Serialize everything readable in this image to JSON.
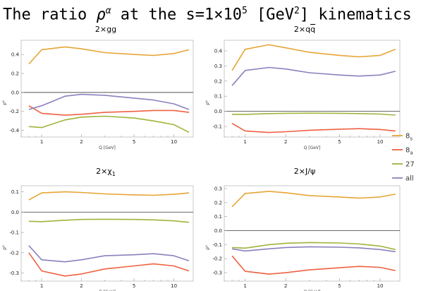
{
  "header": {
    "prefix": "The ratio ",
    "rho": "ρ",
    "alpha": "α",
    "middle": " at the s=1×10",
    "exp": "5",
    "unit_open": " [GeV",
    "unit_exp": "2",
    "suffix": "] kinematics"
  },
  "legend": [
    {
      "label": "8",
      "sub": "s",
      "color": "#E6A535"
    },
    {
      "label": "8",
      "sub": "a",
      "color": "#EE6142"
    },
    {
      "label": "27",
      "sub": "",
      "color": "#9CB53C"
    },
    {
      "label": "all",
      "sub": "",
      "color": "#8C80BE"
    }
  ],
  "chart_data": [
    {
      "type": "line",
      "title": "2×gg",
      "xlabel": "Q [GeV]",
      "ylabel": "ρ^α",
      "xscale": "log",
      "xlim": [
        0.7,
        14
      ],
      "ylim": [
        -0.47,
        0.55
      ],
      "xticks": [
        1,
        2,
        5,
        10
      ],
      "yticks": [
        -0.4,
        -0.2,
        0.0,
        0.2,
        0.4
      ],
      "ytick_labels": [
        "-0.4",
        "-0.2",
        "0.0",
        "0.2",
        "0.4"
      ],
      "x": [
        0.8,
        1.0,
        1.5,
        2.0,
        3.0,
        5.0,
        7.0,
        10.0,
        13.0
      ],
      "series": [
        {
          "name": "8s",
          "values": [
            0.3,
            0.45,
            0.48,
            0.46,
            0.42,
            0.4,
            0.39,
            0.41,
            0.45
          ]
        },
        {
          "name": "8a",
          "values": [
            -0.14,
            -0.22,
            -0.24,
            -0.23,
            -0.21,
            -0.2,
            -0.19,
            -0.19,
            -0.21
          ]
        },
        {
          "name": "27",
          "values": [
            -0.36,
            -0.37,
            -0.29,
            -0.26,
            -0.25,
            -0.27,
            -0.3,
            -0.34,
            -0.42
          ]
        },
        {
          "name": "all",
          "values": [
            -0.18,
            -0.14,
            -0.04,
            -0.02,
            -0.03,
            -0.06,
            -0.08,
            -0.12,
            -0.18
          ]
        }
      ]
    },
    {
      "type": "line",
      "title": "2×qq̄",
      "title_base": "2×q",
      "title_bar": "q",
      "xlabel": "Q [GeV]",
      "ylabel": "ρ^α",
      "xscale": "log",
      "xlim": [
        0.7,
        14
      ],
      "ylim": [
        -0.17,
        0.47
      ],
      "xticks": [
        1,
        2,
        5,
        10
      ],
      "yticks": [
        -0.1,
        0.0,
        0.1,
        0.2,
        0.3,
        0.4
      ],
      "ytick_labels": [
        "-0.1",
        "0.0",
        "0.1",
        "0.2",
        "0.3",
        "0.4"
      ],
      "x": [
        0.8,
        1.0,
        1.5,
        2.0,
        3.0,
        5.0,
        7.0,
        10.0,
        13.0
      ],
      "series": [
        {
          "name": "8s",
          "values": [
            0.27,
            0.41,
            0.44,
            0.42,
            0.39,
            0.37,
            0.36,
            0.37,
            0.41
          ]
        },
        {
          "name": "8a",
          "values": [
            -0.08,
            -0.13,
            -0.14,
            -0.135,
            -0.125,
            -0.118,
            -0.115,
            -0.12,
            -0.13
          ]
        },
        {
          "name": "27",
          "values": [
            -0.02,
            -0.02,
            -0.015,
            -0.013,
            -0.012,
            -0.013,
            -0.015,
            -0.018,
            -0.025
          ]
        },
        {
          "name": "all",
          "values": [
            0.17,
            0.27,
            0.29,
            0.28,
            0.255,
            0.24,
            0.233,
            0.24,
            0.265
          ]
        }
      ]
    },
    {
      "type": "line",
      "title": "2×χ1",
      "title_base": "2×χ",
      "title_sub": "1",
      "xlabel": "Q [GeV]",
      "ylabel": "ρ^α",
      "xscale": "log",
      "xlim": [
        0.7,
        14
      ],
      "ylim": [
        -0.34,
        0.13
      ],
      "xticks": [
        1,
        2,
        5,
        10
      ],
      "yticks": [
        -0.3,
        -0.2,
        -0.1,
        0.0,
        0.1
      ],
      "ytick_labels": [
        "-0.3",
        "-0.2",
        "-0.1",
        "0.0",
        "0.1"
      ],
      "x": [
        0.8,
        1.0,
        1.5,
        2.0,
        3.0,
        5.0,
        7.0,
        10.0,
        13.0
      ],
      "series": [
        {
          "name": "8s",
          "values": [
            0.06,
            0.095,
            0.1,
            0.097,
            0.09,
            0.085,
            0.083,
            0.088,
            0.095
          ]
        },
        {
          "name": "8a",
          "values": [
            -0.2,
            -0.29,
            -0.315,
            -0.305,
            -0.28,
            -0.265,
            -0.255,
            -0.265,
            -0.29
          ]
        },
        {
          "name": "27",
          "values": [
            -0.045,
            -0.047,
            -0.04,
            -0.036,
            -0.035,
            -0.036,
            -0.038,
            -0.043,
            -0.05
          ]
        },
        {
          "name": "all",
          "values": [
            -0.165,
            -0.235,
            -0.245,
            -0.235,
            -0.215,
            -0.21,
            -0.205,
            -0.215,
            -0.24
          ]
        }
      ]
    },
    {
      "type": "line",
      "title": "2×J/ψ",
      "xlabel": "Q [GeV]",
      "ylabel": "ρ^α",
      "xscale": "log",
      "xlim": [
        0.7,
        14
      ],
      "ylim": [
        -0.36,
        0.32
      ],
      "xticks": [
        1,
        2,
        5,
        10
      ],
      "yticks": [
        -0.3,
        -0.2,
        -0.1,
        0.0,
        0.1,
        0.2,
        0.3
      ],
      "ytick_labels": [
        "-0.3",
        "-0.2",
        "-0.1",
        "0.0",
        "0.1",
        "0.2",
        "0.3"
      ],
      "x": [
        0.8,
        1.0,
        1.5,
        2.0,
        3.0,
        5.0,
        7.0,
        10.0,
        13.0
      ],
      "series": [
        {
          "name": "8s",
          "values": [
            0.17,
            0.265,
            0.28,
            0.27,
            0.25,
            0.24,
            0.232,
            0.24,
            0.26
          ]
        },
        {
          "name": "8a",
          "values": [
            -0.18,
            -0.29,
            -0.31,
            -0.3,
            -0.28,
            -0.265,
            -0.255,
            -0.262,
            -0.285
          ]
        },
        {
          "name": "27",
          "values": [
            -0.12,
            -0.125,
            -0.1,
            -0.09,
            -0.085,
            -0.088,
            -0.095,
            -0.11,
            -0.135
          ]
        },
        {
          "name": "all",
          "values": [
            -0.13,
            -0.145,
            -0.13,
            -0.12,
            -0.115,
            -0.118,
            -0.123,
            -0.135,
            -0.15
          ]
        }
      ]
    }
  ]
}
